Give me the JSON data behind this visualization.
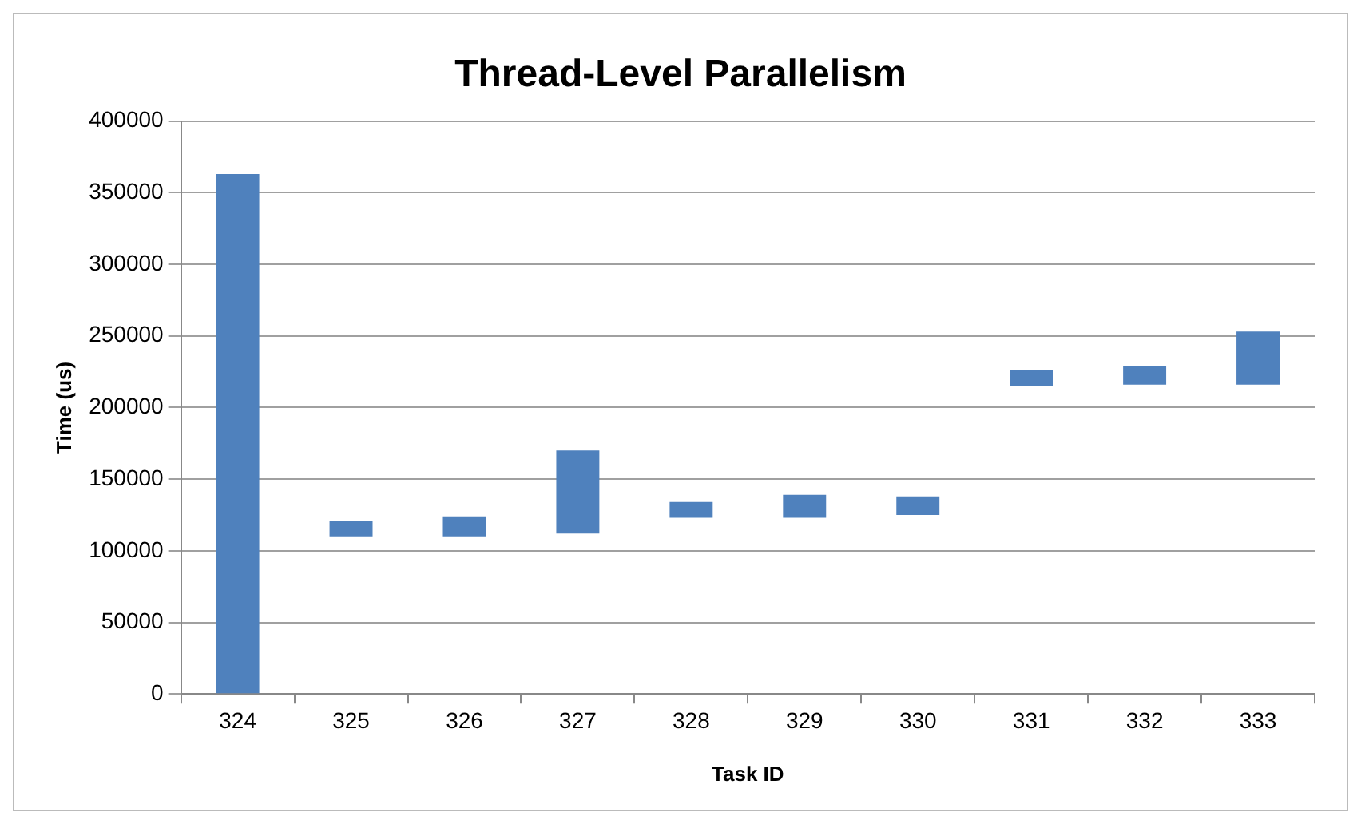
{
  "chart_data": {
    "type": "bar",
    "title": "Thread-Level Parallelism",
    "xlabel": "Task ID",
    "ylabel": "Time (us)",
    "categories": [
      "324",
      "325",
      "326",
      "327",
      "328",
      "329",
      "330",
      "331",
      "332",
      "333"
    ],
    "values": [
      363000,
      11000,
      14000,
      58000,
      11000,
      16000,
      13000,
      11000,
      13000,
      37000
    ],
    "base": [
      0,
      110000,
      110000,
      112000,
      123000,
      123000,
      125000,
      215000,
      216000,
      216000
    ],
    "color": "#4f81bd",
    "ylim": [
      0,
      400000
    ],
    "yticks": [
      0,
      50000,
      100000,
      150000,
      200000,
      250000,
      300000,
      350000,
      400000
    ],
    "grid": "y",
    "legend": false
  }
}
